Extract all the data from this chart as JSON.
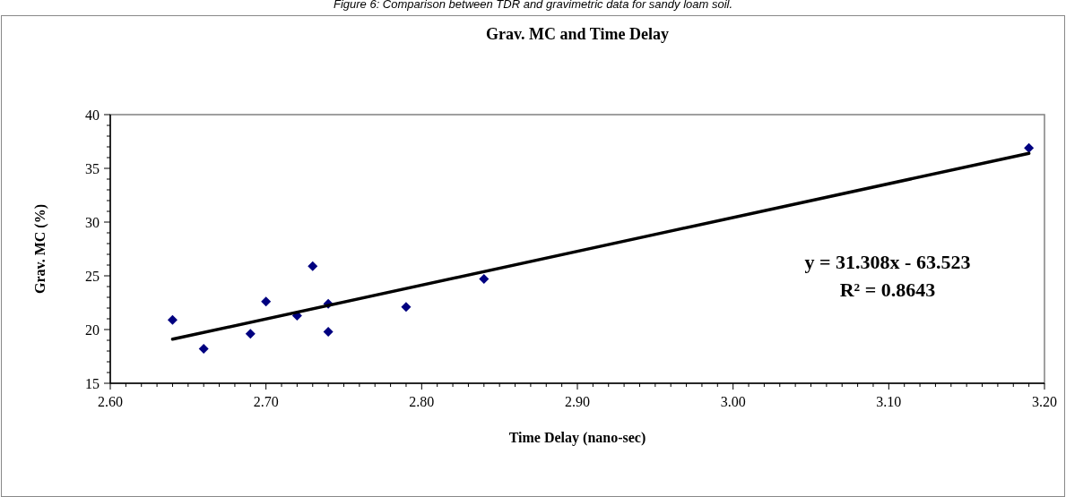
{
  "chart_data": {
    "type": "scatter",
    "title": "Grav. MC and Time Delay",
    "xlabel": "Time Delay (nano-sec)",
    "ylabel": "Grav. MC (%)",
    "annotations": [
      "Figure 6: Comparison between TDR and gravimetric data for sandy loam soil.",
      "y = 31.308x - 63.523",
      "R² = 0.8643"
    ],
    "series": [
      {
        "color": "#000080",
        "marker": "diamond",
        "x": [
          2.64,
          2.66,
          2.69,
          2.7,
          2.72,
          2.73,
          2.74,
          2.74,
          2.79,
          2.84,
          3.19
        ],
        "values": [
          20.9,
          18.2,
          19.6,
          22.6,
          21.3,
          25.9,
          22.4,
          19.8,
          22.1,
          24.7,
          36.9
        ]
      },
      {
        "type": "line",
        "color": "#000000",
        "x": [
          2.64,
          3.19
        ],
        "values": [
          19.1,
          36.4
        ]
      }
    ],
    "xlim": [
      2.6,
      3.2
    ],
    "xticks": [
      {
        "value": 2.6,
        "label": "2.60"
      },
      {
        "value": 2.7,
        "label": "2.70"
      },
      {
        "value": 2.8,
        "label": "2.80"
      },
      {
        "value": 2.9,
        "label": "2.90"
      },
      {
        "value": 3.0,
        "label": "3.00"
      },
      {
        "value": 3.1,
        "label": "3.10"
      },
      {
        "value": 3.2,
        "label": "3.20"
      },
      {
        "value": 2.61,
        "label": null
      },
      {
        "value": 2.62,
        "label": null
      },
      {
        "value": 2.63,
        "label": null
      },
      {
        "value": 2.64,
        "label": null
      },
      {
        "value": 2.65,
        "label": null
      },
      {
        "value": 2.66,
        "label": null
      },
      {
        "value": 2.67,
        "label": null
      },
      {
        "value": 2.68,
        "label": null
      },
      {
        "value": 2.69,
        "label": null
      },
      {
        "value": 2.71,
        "label": null
      },
      {
        "value": 2.72,
        "label": null
      },
      {
        "value": 2.73,
        "label": null
      },
      {
        "value": 2.74,
        "label": null
      },
      {
        "value": 2.75,
        "label": null
      },
      {
        "value": 2.76,
        "label": null
      },
      {
        "value": 2.77,
        "label": null
      },
      {
        "value": 2.78,
        "label": null
      },
      {
        "value": 2.79,
        "label": null
      },
      {
        "value": 2.81,
        "label": null
      },
      {
        "value": 2.82,
        "label": null
      },
      {
        "value": 2.83,
        "label": null
      },
      {
        "value": 2.84,
        "label": null
      },
      {
        "value": 2.85,
        "label": null
      },
      {
        "value": 2.86,
        "label": null
      },
      {
        "value": 2.87,
        "label": null
      },
      {
        "value": 2.88,
        "label": null
      },
      {
        "value": 2.89,
        "label": null
      },
      {
        "value": 2.91,
        "label": null
      },
      {
        "value": 2.92,
        "label": null
      },
      {
        "value": 2.93,
        "label": null
      },
      {
        "value": 2.94,
        "label": null
      },
      {
        "value": 2.95,
        "label": null
      },
      {
        "value": 2.96,
        "label": null
      },
      {
        "value": 2.97,
        "label": null
      },
      {
        "value": 2.98,
        "label": null
      },
      {
        "value": 2.99,
        "label": null
      },
      {
        "value": 3.01,
        "label": null
      },
      {
        "value": 3.02,
        "label": null
      },
      {
        "value": 3.03,
        "label": null
      },
      {
        "value": 3.04,
        "label": null
      },
      {
        "value": 3.05,
        "label": null
      },
      {
        "value": 3.06,
        "label": null
      },
      {
        "value": 3.07,
        "label": null
      },
      {
        "value": 3.08,
        "label": null
      },
      {
        "value": 3.09,
        "label": null
      },
      {
        "value": 3.11,
        "label": null
      },
      {
        "value": 3.12,
        "label": null
      },
      {
        "value": 3.13,
        "label": null
      },
      {
        "value": 3.14,
        "label": null
      },
      {
        "value": 3.15,
        "label": null
      },
      {
        "value": 3.16,
        "label": null
      },
      {
        "value": 3.17,
        "label": null
      },
      {
        "value": 3.18,
        "label": null
      },
      {
        "value": 3.19,
        "label": null
      }
    ],
    "ylim": [
      15,
      40
    ],
    "yticks": [
      15,
      20,
      25,
      30,
      35,
      40,
      {
        "value": 16,
        "label": null
      },
      {
        "value": 17,
        "label": null
      },
      {
        "value": 18,
        "label": null
      },
      {
        "value": 19,
        "label": null
      },
      {
        "value": 21,
        "label": null
      },
      {
        "value": 22,
        "label": null
      },
      {
        "value": 23,
        "label": null
      },
      {
        "value": 24,
        "label": null
      },
      {
        "value": 26,
        "label": null
      },
      {
        "value": 27,
        "label": null
      },
      {
        "value": 28,
        "label": null
      },
      {
        "value": 29,
        "label": null
      },
      {
        "value": 31,
        "label": null
      },
      {
        "value": 32,
        "label": null
      },
      {
        "value": 33,
        "label": null
      },
      {
        "value": 34,
        "label": null
      },
      {
        "value": 36,
        "label": null
      },
      {
        "value": 37,
        "label": null
      },
      {
        "value": 38,
        "label": null
      },
      {
        "value": 39,
        "label": null
      }
    ]
  }
}
